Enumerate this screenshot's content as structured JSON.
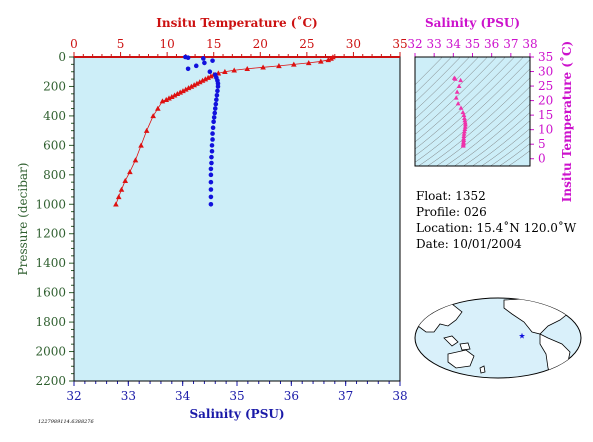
{
  "chart_data": [
    {
      "type": "scatter",
      "name": "profile",
      "top_axis_title": "Insitu Temperature (˚C)",
      "bottom_axis_title": "Salinity (PSU)",
      "left_axis_title": "Pressure (decibar)",
      "temp_range": [
        0,
        35
      ],
      "temp_ticks": [
        0,
        5,
        10,
        15,
        20,
        25,
        30,
        35
      ],
      "sal_range": [
        32,
        38
      ],
      "sal_ticks": [
        32,
        33,
        34,
        35,
        36,
        37,
        38
      ],
      "pressure_range": [
        0,
        2200
      ],
      "pressure_ticks": [
        0,
        200,
        400,
        600,
        800,
        1000,
        1200,
        1400,
        1600,
        1800,
        2000,
        2200
      ],
      "series": [
        {
          "color": "#dd1111",
          "marker": "triangle",
          "temperature": [
            27.8,
            27.6,
            27.3,
            26.5,
            25.2,
            23.6,
            22.0,
            20.3,
            18.6,
            17.2,
            16.2,
            15.5,
            15.0,
            14.7,
            14.4,
            14.1,
            13.8,
            13.5,
            13.2,
            12.9,
            12.6,
            12.3,
            12.0,
            11.7,
            11.4,
            11.1,
            10.8,
            10.5,
            10.2,
            9.9,
            9.5,
            9.0,
            8.5,
            7.8,
            7.2,
            6.6,
            6.0,
            5.5,
            5.1,
            4.8,
            4.5
          ],
          "pressure": [
            0,
            10,
            20,
            30,
            40,
            50,
            60,
            70,
            80,
            90,
            100,
            110,
            120,
            130,
            140,
            150,
            160,
            170,
            180,
            190,
            200,
            210,
            220,
            230,
            240,
            250,
            260,
            270,
            280,
            290,
            300,
            350,
            400,
            500,
            600,
            700,
            780,
            840,
            900,
            950,
            1000
          ]
        },
        {
          "color": "#1111dd",
          "marker": "circle",
          "salinity": [
            34.05,
            34.1,
            34.38,
            34.55,
            34.4,
            34.25,
            34.1,
            34.5,
            34.6,
            34.62,
            34.64,
            34.65,
            34.65,
            34.64,
            34.63,
            34.62,
            34.61,
            34.6,
            34.59,
            34.58,
            34.57,
            34.56,
            34.55,
            34.55,
            34.54,
            34.54,
            34.53,
            34.53,
            34.52,
            34.52,
            34.52,
            34.52,
            34.52,
            34.52
          ],
          "pressure": [
            0,
            5,
            10,
            25,
            40,
            60,
            80,
            100,
            120,
            140,
            160,
            180,
            200,
            230,
            260,
            290,
            320,
            350,
            380,
            410,
            440,
            480,
            520,
            560,
            600,
            640,
            680,
            720,
            760,
            800,
            850,
            900,
            950,
            1000
          ]
        }
      ]
    },
    {
      "type": "scatter",
      "name": "ts-diagram",
      "top_axis_title": "Salinity (PSU)",
      "right_axis_title": "Insitu Temperature (˚C)",
      "sal_range": [
        32,
        38
      ],
      "sal_ticks": [
        32,
        33,
        34,
        35,
        36,
        37,
        38
      ],
      "temp_range": [
        -2.5,
        35
      ],
      "temp_ticks": [
        0,
        5,
        10,
        15,
        20,
        25,
        30,
        35
      ],
      "series": [
        {
          "color": "#ee33aa",
          "marker": "triangle",
          "salinity": [
            34.05,
            34.1,
            34.38,
            34.3,
            34.2,
            34.15,
            34.25,
            34.4,
            34.5,
            34.55,
            34.58,
            34.6,
            34.62,
            34.63,
            34.62,
            34.6,
            34.58,
            34.56,
            34.55,
            34.54,
            34.54,
            34.53,
            34.53,
            34.52,
            34.52
          ],
          "temperature": [
            27.8,
            27.5,
            27.0,
            25.0,
            23.0,
            21.0,
            19.0,
            17.5,
            16.0,
            15.0,
            14.0,
            13.2,
            12.5,
            11.8,
            11.0,
            10.2,
            9.4,
            8.6,
            7.8,
            7.0,
            6.4,
            5.8,
            5.3,
            4.9,
            4.5
          ]
        }
      ]
    }
  ],
  "info": {
    "float": "Float:  1352",
    "profile": "Profile:  026",
    "location": "Location:  15.4˚N  120.0˚W",
    "date": "Date:  10/01/2004"
  },
  "footer_id": "1227989114.6388276",
  "colors": {
    "plot_bg": "#cdeef8",
    "red": "#cc1111",
    "blue": "#1a1aa8",
    "magenta": "#cc11cc",
    "green": "#2f5f2f"
  },
  "map": {
    "float_marker": "star"
  }
}
